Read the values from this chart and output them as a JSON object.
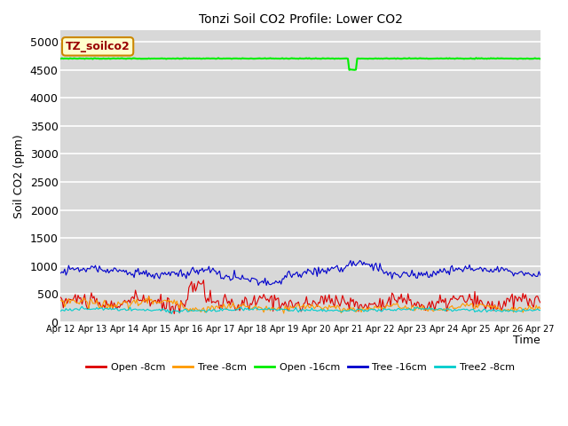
{
  "title": "Tonzi Soil CO2 Profile: Lower CO2",
  "ylabel": "Soil CO2 (ppm)",
  "xlabel": "Time",
  "annotation_text": "TZ_soilco2",
  "annotation_bg": "#ffffcc",
  "annotation_border": "#cc8800",
  "annotation_text_color": "#990000",
  "ylim": [
    0,
    5200
  ],
  "yticks": [
    0,
    500,
    1000,
    1500,
    2000,
    2500,
    3000,
    3500,
    4000,
    4500,
    5000
  ],
  "bg_color": "#d8d8d8",
  "grid_color": "#ffffff",
  "legend_colors": [
    "#dd0000",
    "#ff9900",
    "#00ee00",
    "#0000cc",
    "#00cccc"
  ],
  "legend_labels": [
    "Open -8cm",
    "Tree -8cm",
    "Open -16cm",
    "Tree -16cm",
    "Tree2 -8cm"
  ],
  "n_points": 360,
  "x_start": 12,
  "x_end": 27,
  "xtick_positions": [
    12,
    13,
    14,
    15,
    16,
    17,
    18,
    19,
    20,
    21,
    22,
    23,
    24,
    25,
    26,
    27
  ],
  "xtick_labels": [
    "Apr 12",
    "Apr 13",
    "Apr 14",
    "Apr 15",
    "Apr 16",
    "Apr 17",
    "Apr 18",
    "Apr 19",
    "Apr 20",
    "Apr 21",
    "Apr 22",
    "Apr 23",
    "Apr 24",
    "Apr 25",
    "Apr 26",
    "Apr 27"
  ]
}
